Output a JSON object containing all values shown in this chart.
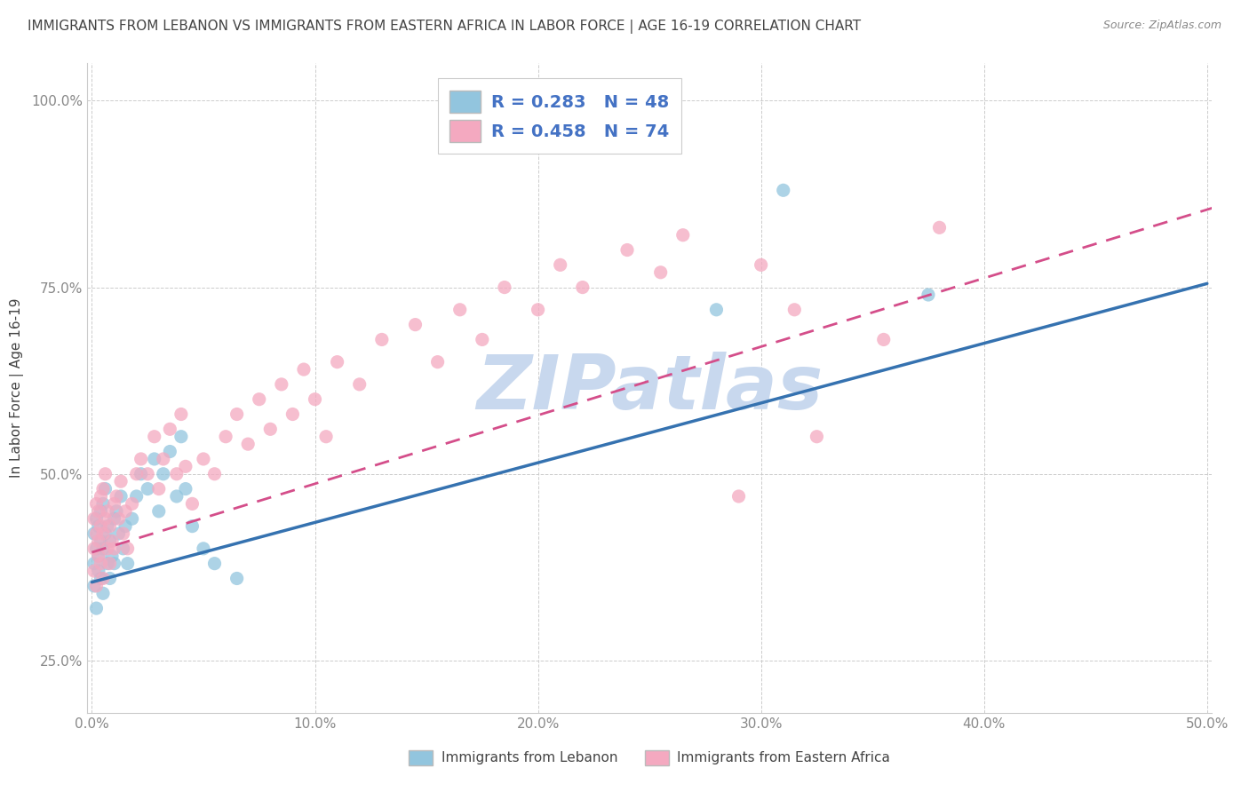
{
  "title": "IMMIGRANTS FROM LEBANON VS IMMIGRANTS FROM EASTERN AFRICA IN LABOR FORCE | AGE 16-19 CORRELATION CHART",
  "source_text": "Source: ZipAtlas.com",
  "ylabel": "In Labor Force | Age 16-19",
  "xlim": [
    -0.002,
    0.502
  ],
  "ylim": [
    0.18,
    1.05
  ],
  "xticks": [
    0.0,
    0.1,
    0.2,
    0.3,
    0.4,
    0.5
  ],
  "xticklabels": [
    "0.0%",
    "10.0%",
    "20.0%",
    "30.0%",
    "40.0%",
    "50.0%"
  ],
  "yticks": [
    0.25,
    0.5,
    0.75,
    1.0
  ],
  "yticklabels": [
    "25.0%",
    "50.0%",
    "75.0%",
    "100.0%"
  ],
  "legend_r1": "R = 0.283",
  "legend_n1": "N = 48",
  "legend_r2": "R = 0.458",
  "legend_n2": "N = 74",
  "color_lebanon": "#92c5de",
  "color_ea": "#f4a9c0",
  "color_line_lebanon": "#3572b0",
  "color_line_ea": "#d44e8a",
  "watermark": "ZIPatlas",
  "watermark_color": "#c8d8ee",
  "legend_label1": "Immigrants from Lebanon",
  "legend_label2": "Immigrants from Eastern Africa",
  "leb_line_x0": 0.0,
  "leb_line_y0": 0.355,
  "leb_line_x1": 0.5,
  "leb_line_y1": 0.755,
  "ea_line_x0": 0.0,
  "ea_line_y0": 0.395,
  "ea_line_x1": 0.5,
  "ea_line_y1": 0.86,
  "title_fontsize": 11,
  "tick_fontsize": 11,
  "axis_label_fontsize": 11,
  "lebanon_x": [
    0.001,
    0.001,
    0.001,
    0.002,
    0.002,
    0.002,
    0.003,
    0.003,
    0.003,
    0.004,
    0.004,
    0.004,
    0.005,
    0.005,
    0.005,
    0.006,
    0.006,
    0.007,
    0.007,
    0.008,
    0.008,
    0.009,
    0.01,
    0.01,
    0.011,
    0.012,
    0.013,
    0.014,
    0.015,
    0.016,
    0.018,
    0.02,
    0.022,
    0.025,
    0.028,
    0.03,
    0.032,
    0.035,
    0.038,
    0.04,
    0.042,
    0.045,
    0.05,
    0.055,
    0.065,
    0.28,
    0.31,
    0.375
  ],
  "lebanon_y": [
    0.38,
    0.42,
    0.35,
    0.4,
    0.44,
    0.32,
    0.39,
    0.43,
    0.37,
    0.41,
    0.36,
    0.45,
    0.4,
    0.46,
    0.34,
    0.42,
    0.48,
    0.38,
    0.43,
    0.36,
    0.41,
    0.39,
    0.44,
    0.38,
    0.45,
    0.42,
    0.47,
    0.4,
    0.43,
    0.38,
    0.44,
    0.47,
    0.5,
    0.48,
    0.52,
    0.45,
    0.5,
    0.53,
    0.47,
    0.55,
    0.48,
    0.43,
    0.4,
    0.38,
    0.36,
    0.72,
    0.88,
    0.74
  ],
  "ea_x": [
    0.001,
    0.001,
    0.001,
    0.002,
    0.002,
    0.002,
    0.003,
    0.003,
    0.003,
    0.004,
    0.004,
    0.004,
    0.005,
    0.005,
    0.005,
    0.006,
    0.006,
    0.007,
    0.007,
    0.008,
    0.008,
    0.009,
    0.01,
    0.01,
    0.011,
    0.012,
    0.013,
    0.014,
    0.015,
    0.016,
    0.018,
    0.02,
    0.022,
    0.025,
    0.028,
    0.03,
    0.032,
    0.035,
    0.038,
    0.04,
    0.042,
    0.045,
    0.05,
    0.055,
    0.06,
    0.065,
    0.07,
    0.075,
    0.08,
    0.085,
    0.09,
    0.095,
    0.1,
    0.105,
    0.11,
    0.12,
    0.13,
    0.145,
    0.155,
    0.165,
    0.175,
    0.185,
    0.2,
    0.21,
    0.22,
    0.24,
    0.255,
    0.265,
    0.29,
    0.3,
    0.315,
    0.325,
    0.355,
    0.38
  ],
  "ea_y": [
    0.4,
    0.44,
    0.37,
    0.42,
    0.46,
    0.35,
    0.41,
    0.45,
    0.39,
    0.43,
    0.38,
    0.47,
    0.42,
    0.48,
    0.36,
    0.44,
    0.5,
    0.4,
    0.45,
    0.38,
    0.43,
    0.41,
    0.46,
    0.4,
    0.47,
    0.44,
    0.49,
    0.42,
    0.45,
    0.4,
    0.46,
    0.5,
    0.52,
    0.5,
    0.55,
    0.48,
    0.52,
    0.56,
    0.5,
    0.58,
    0.51,
    0.46,
    0.52,
    0.5,
    0.55,
    0.58,
    0.54,
    0.6,
    0.56,
    0.62,
    0.58,
    0.64,
    0.6,
    0.55,
    0.65,
    0.62,
    0.68,
    0.7,
    0.65,
    0.72,
    0.68,
    0.75,
    0.72,
    0.78,
    0.75,
    0.8,
    0.77,
    0.82,
    0.47,
    0.78,
    0.72,
    0.55,
    0.68,
    0.83
  ]
}
